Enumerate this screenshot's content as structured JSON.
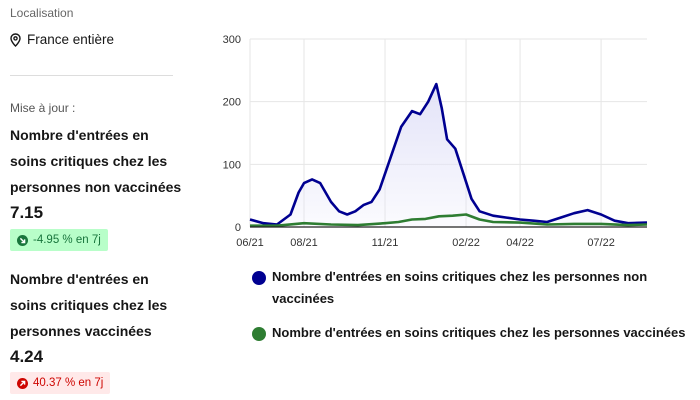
{
  "sidebar": {
    "localisation_label": "Localisation",
    "localisation_value": "France entière",
    "update_label": "Mise à jour :",
    "metrics": [
      {
        "title": "Nombre d'entrées en soins critiques chez les personnes non vaccinées",
        "value": "7.15",
        "change": "-4.95 % en 7j",
        "trend": "down"
      },
      {
        "title": "Nombre d'entrées en soins critiques chez les personnes vaccinées",
        "value": "4.24",
        "change": "40.37 % en 7j",
        "trend": "up"
      }
    ]
  },
  "colors": {
    "series_unvaccinated": "#000091",
    "series_vaccinated": "#2e7d32",
    "area_fill": "#e3e3f8",
    "badge_green_bg": "#b8fec9",
    "badge_red_bg": "#ffe9e9"
  },
  "chart_data": {
    "type": "line",
    "title": "",
    "xlabel": "",
    "ylabel": "",
    "ylim": [
      0,
      300
    ],
    "yticks": [
      0,
      100,
      200,
      300
    ],
    "xlim": [
      0,
      14.7
    ],
    "xticks": [
      {
        "label": "06/21",
        "pos": 0
      },
      {
        "label": "08/21",
        "pos": 2
      },
      {
        "label": "11/21",
        "pos": 5
      },
      {
        "label": "02/22",
        "pos": 8
      },
      {
        "label": "04/22",
        "pos": 10
      },
      {
        "label": "07/22",
        "pos": 13
      }
    ],
    "series": [
      {
        "name": "Nombre d'entrées en soins critiques chez les personnes non vaccinées",
        "fill": true,
        "points": [
          [
            0,
            12
          ],
          [
            0.5,
            6
          ],
          [
            1,
            4
          ],
          [
            1.5,
            20
          ],
          [
            1.8,
            55
          ],
          [
            2,
            70
          ],
          [
            2.3,
            76
          ],
          [
            2.6,
            70
          ],
          [
            3,
            40
          ],
          [
            3.3,
            25
          ],
          [
            3.6,
            20
          ],
          [
            3.9,
            25
          ],
          [
            4.2,
            35
          ],
          [
            4.5,
            40
          ],
          [
            4.8,
            60
          ],
          [
            5.2,
            110
          ],
          [
            5.6,
            160
          ],
          [
            6,
            185
          ],
          [
            6.3,
            180
          ],
          [
            6.6,
            200
          ],
          [
            6.9,
            228
          ],
          [
            7.1,
            190
          ],
          [
            7.3,
            140
          ],
          [
            7.6,
            125
          ],
          [
            7.9,
            85
          ],
          [
            8.2,
            45
          ],
          [
            8.5,
            25
          ],
          [
            9,
            18
          ],
          [
            9.5,
            15
          ],
          [
            10,
            12
          ],
          [
            10.5,
            10
          ],
          [
            11,
            8
          ],
          [
            11.5,
            15
          ],
          [
            12,
            22
          ],
          [
            12.5,
            27
          ],
          [
            13,
            20
          ],
          [
            13.5,
            10
          ],
          [
            14,
            6
          ],
          [
            14.7,
            7
          ]
        ]
      },
      {
        "name": "Nombre d'entrées en soins critiques chez les personnes vaccinées",
        "fill": false,
        "points": [
          [
            0,
            2
          ],
          [
            1,
            2
          ],
          [
            2,
            6
          ],
          [
            3,
            4
          ],
          [
            4,
            3
          ],
          [
            5,
            6
          ],
          [
            5.5,
            8
          ],
          [
            6,
            12
          ],
          [
            6.5,
            13
          ],
          [
            7,
            17
          ],
          [
            7.5,
            18
          ],
          [
            8,
            20
          ],
          [
            8.5,
            12
          ],
          [
            9,
            8
          ],
          [
            10,
            7
          ],
          [
            11,
            4
          ],
          [
            12,
            5
          ],
          [
            13,
            5
          ],
          [
            14,
            3
          ],
          [
            14.7,
            4
          ]
        ]
      }
    ]
  }
}
